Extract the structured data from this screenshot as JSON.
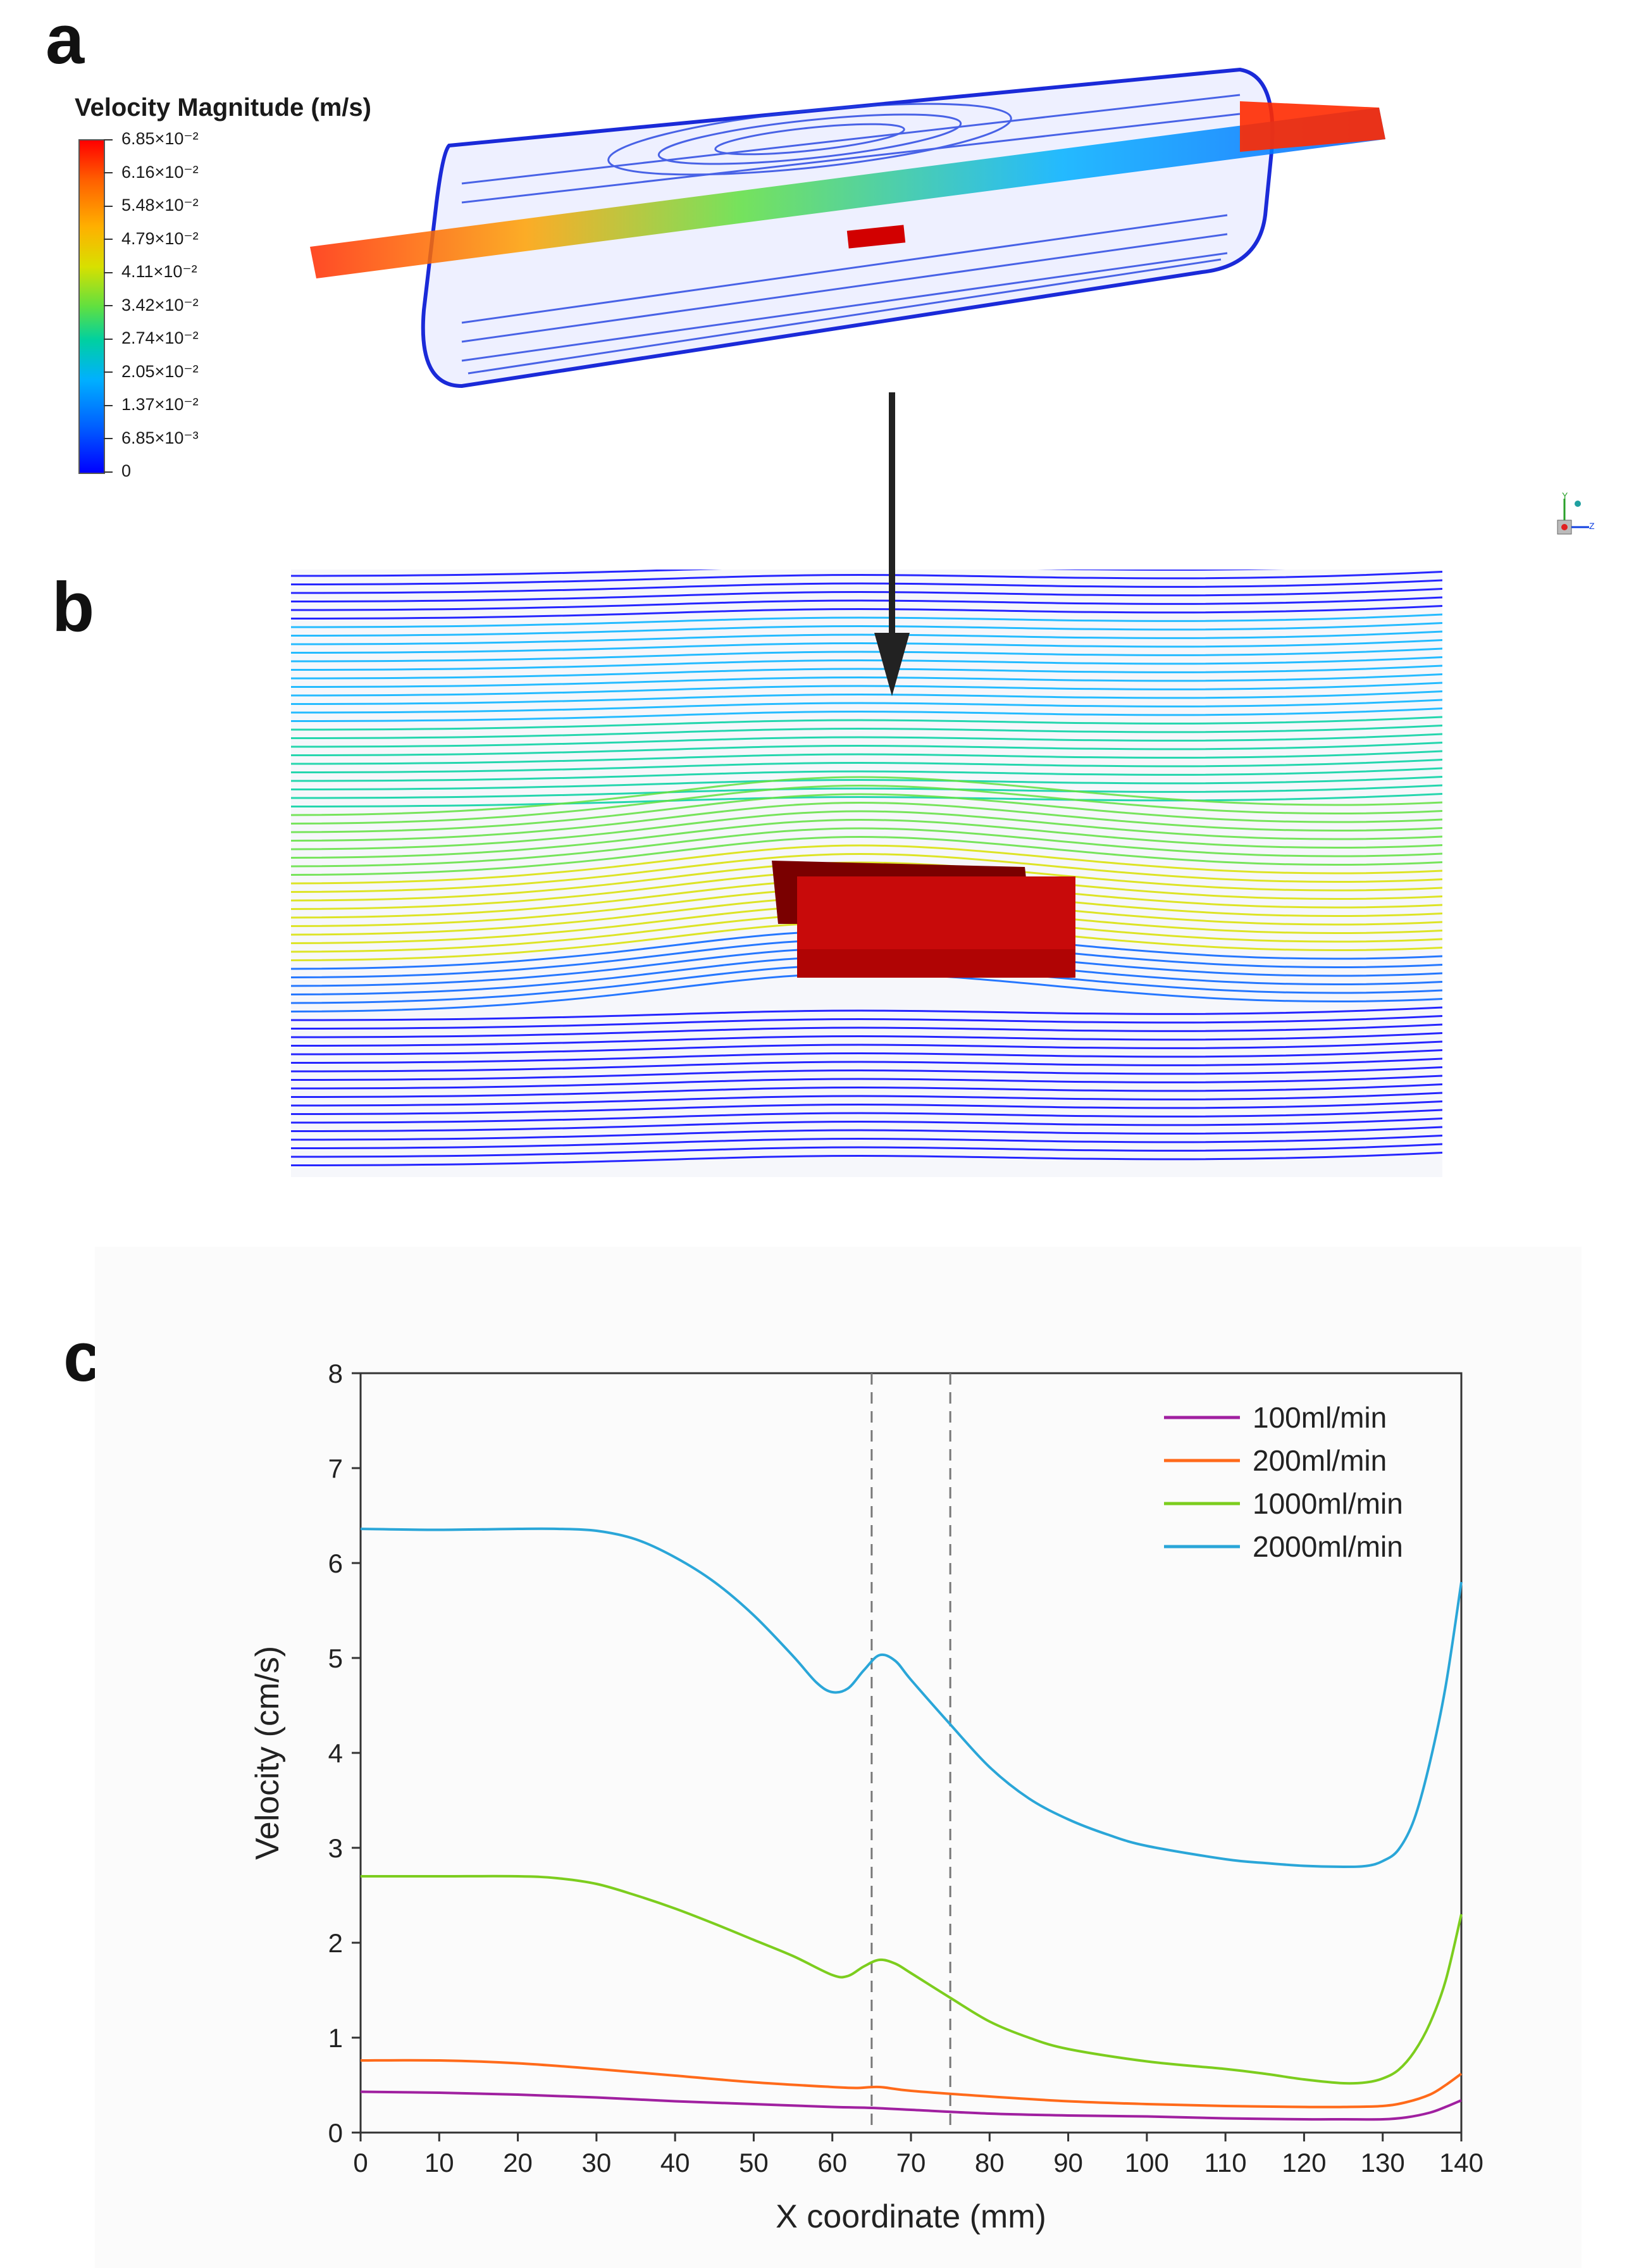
{
  "panels": {
    "a": "a",
    "b": "b",
    "c": "c"
  },
  "colorbar": {
    "title": "Velocity Magnitude (m/s)",
    "ticks": [
      "6.85×10⁻²",
      "6.16×10⁻²",
      "5.48×10⁻²",
      "4.79×10⁻²",
      "4.11×10⁻²",
      "3.42×10⁻²",
      "2.74×10⁻²",
      "2.05×10⁻²",
      "1.37×10⁻²",
      "6.85×10⁻³",
      "0"
    ],
    "colors": [
      "#ff0000",
      "#ff6000",
      "#ffb000",
      "#d8e000",
      "#60e040",
      "#00d0a0",
      "#00b0ff",
      "#0060ff",
      "#0000ff"
    ]
  },
  "axes_icon": {
    "labels": [
      "Y",
      "Z"
    ]
  },
  "chart_data": {
    "type": "line",
    "title": "",
    "xlabel": "X coordinate (mm)",
    "ylabel": "Velocity (cm/s)",
    "xlim": [
      0,
      140
    ],
    "ylim": [
      0,
      8
    ],
    "xticks": [
      0,
      10,
      20,
      30,
      40,
      50,
      60,
      70,
      80,
      90,
      100,
      110,
      120,
      130,
      140
    ],
    "yticks": [
      0,
      1,
      2,
      3,
      4,
      5,
      6,
      7,
      8
    ],
    "reference_lines_x": [
      65,
      75
    ],
    "legend_position": "top-right",
    "series": [
      {
        "name": "100ml/min",
        "color": "#a020a0",
        "x": [
          0,
          10,
          20,
          30,
          40,
          50,
          60,
          65,
          70,
          80,
          90,
          100,
          110,
          120,
          125,
          130,
          133,
          136,
          138,
          140
        ],
        "y": [
          0.43,
          0.42,
          0.4,
          0.37,
          0.33,
          0.3,
          0.27,
          0.26,
          0.24,
          0.2,
          0.18,
          0.17,
          0.15,
          0.14,
          0.14,
          0.14,
          0.16,
          0.21,
          0.27,
          0.34
        ]
      },
      {
        "name": "200ml/min",
        "color": "#ff6a1a",
        "x": [
          0,
          10,
          20,
          30,
          40,
          50,
          60,
          63,
          66,
          70,
          80,
          90,
          100,
          110,
          120,
          125,
          130,
          133,
          136,
          138,
          140
        ],
        "y": [
          0.76,
          0.76,
          0.73,
          0.67,
          0.6,
          0.53,
          0.48,
          0.47,
          0.48,
          0.44,
          0.38,
          0.33,
          0.3,
          0.28,
          0.27,
          0.27,
          0.28,
          0.32,
          0.4,
          0.5,
          0.62
        ]
      },
      {
        "name": "1000ml/min",
        "color": "#7ccd1e",
        "x": [
          0,
          10,
          20,
          25,
          30,
          35,
          40,
          45,
          50,
          55,
          60,
          62,
          64,
          66,
          68,
          70,
          75,
          80,
          85,
          90,
          100,
          110,
          115,
          120,
          125,
          128,
          130,
          132,
          134,
          136,
          138,
          140
        ],
        "y": [
          2.7,
          2.7,
          2.7,
          2.68,
          2.62,
          2.5,
          2.36,
          2.2,
          2.03,
          1.86,
          1.66,
          1.65,
          1.75,
          1.82,
          1.78,
          1.68,
          1.42,
          1.17,
          1.0,
          0.88,
          0.75,
          0.67,
          0.62,
          0.56,
          0.52,
          0.53,
          0.57,
          0.66,
          0.85,
          1.15,
          1.6,
          2.3
        ]
      },
      {
        "name": "2000ml/min",
        "color": "#2aa6d8",
        "x": [
          0,
          10,
          20,
          25,
          30,
          35,
          40,
          45,
          50,
          55,
          58,
          60,
          62,
          64,
          66,
          68,
          70,
          75,
          80,
          85,
          90,
          95,
          100,
          110,
          115,
          120,
          125,
          128,
          130,
          132,
          134,
          136,
          138,
          140
        ],
        "y": [
          6.36,
          6.35,
          6.36,
          6.36,
          6.34,
          6.25,
          6.06,
          5.8,
          5.45,
          5.02,
          4.74,
          4.64,
          4.68,
          4.87,
          5.03,
          4.97,
          4.77,
          4.3,
          3.85,
          3.52,
          3.3,
          3.14,
          3.02,
          2.88,
          2.84,
          2.81,
          2.8,
          2.81,
          2.86,
          2.98,
          3.3,
          3.9,
          4.7,
          5.8
        ]
      }
    ]
  }
}
